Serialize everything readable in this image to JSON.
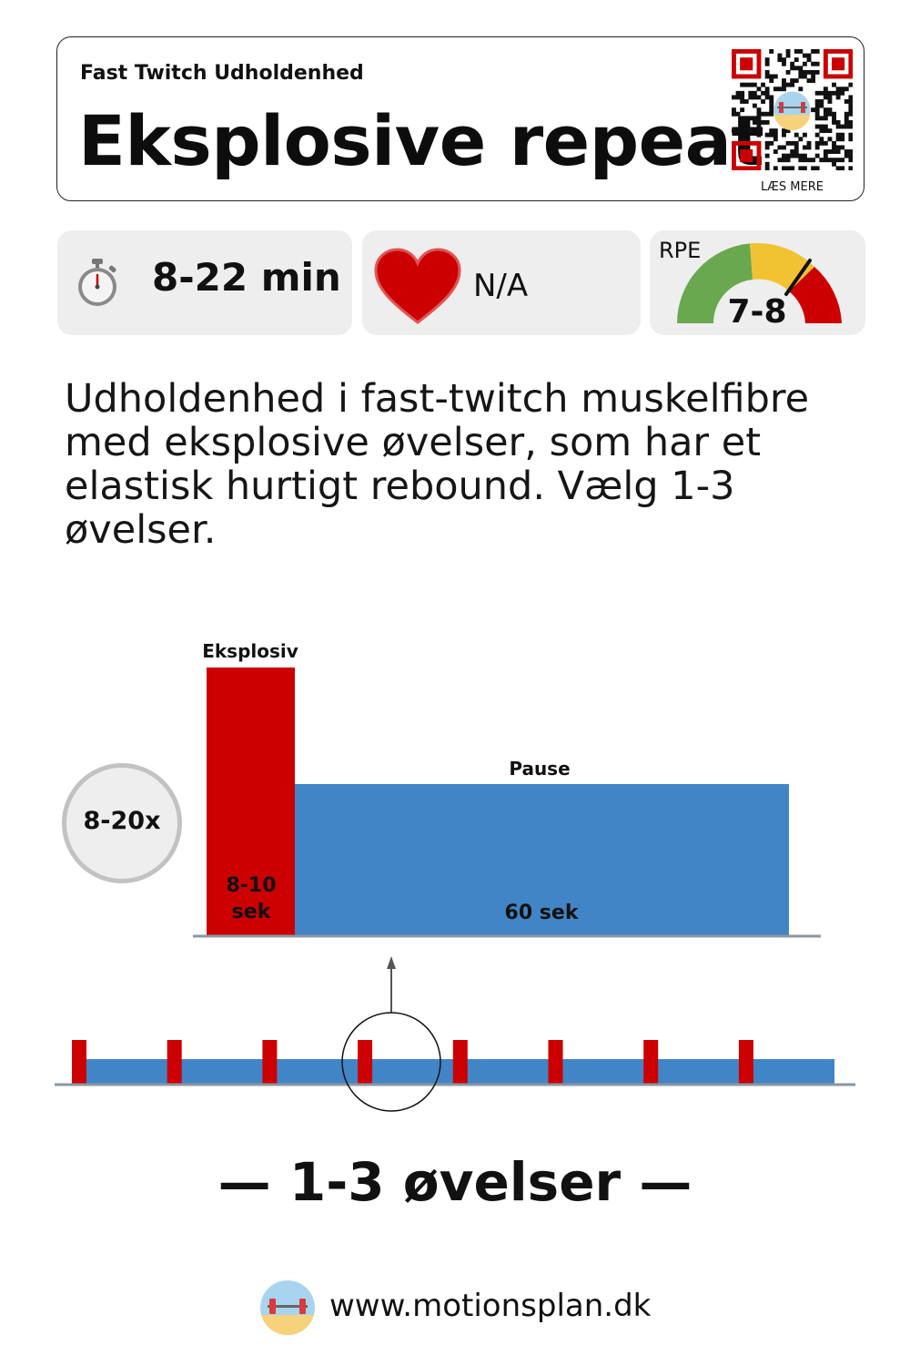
{
  "header": {
    "subtitle": "Fast Twitch Udholdenhed",
    "title": "Eksplosive repeat",
    "qr_caption": "LÆS MERE"
  },
  "stats": {
    "duration": "8-22 min",
    "duration_icon": "stopwatch-icon",
    "heart_rate": "N/A",
    "heart_icon": "heart-icon",
    "rpe_label": "RPE",
    "rpe_value": "7-8"
  },
  "description": "Udholdenhed i fast-twitch muskelfibre med eksplosive øvelser, som har et elastisk hurtigt rebound. Vælg 1-3 øvelser.",
  "interval": {
    "repetitions": "8-20x",
    "work_label": "Eksplosiv",
    "work_duration": "8-10 sek",
    "pause_label": "Pause",
    "pause_duration": "60 sek",
    "work_color": "#cc0000",
    "pause_color": "#4285c6"
  },
  "exercises": "— 1-3 øvelser —",
  "footer": {
    "url": "www.motionsplan.dk"
  },
  "colors": {
    "gauge_green": "#6aa84f",
    "gauge_yellow": "#f1c232",
    "gauge_red": "#cc0000",
    "heart": "#cc0000"
  }
}
